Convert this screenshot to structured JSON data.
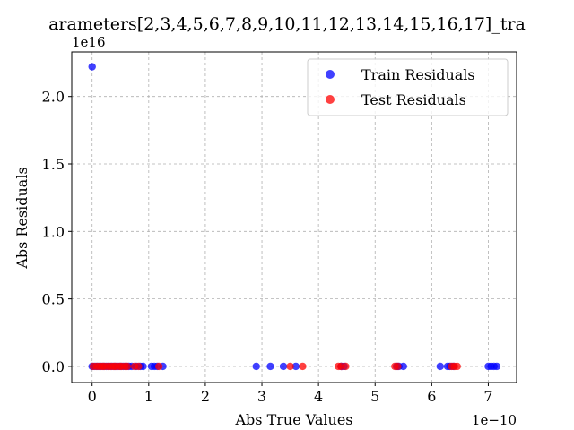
{
  "chart_data": {
    "type": "scatter",
    "title": "arameters[2,3,4,5,6,7,8,9,10,11,12,13,14,15,16,17]_tra",
    "xlabel": "Abs True Values",
    "ylabel": "Abs Residuals",
    "x_offset_label": "1e−10",
    "y_offset_label": "1e16",
    "x_scale": 1e-10,
    "y_scale": 1e+16,
    "xlim": [
      -0.36,
      7.5
    ],
    "ylim": [
      -0.12,
      2.33
    ],
    "xticks": [
      0,
      1,
      2,
      3,
      4,
      5,
      6,
      7
    ],
    "yticks": [
      0.0,
      0.5,
      1.0,
      1.5,
      2.0
    ],
    "xtick_labels": [
      "0",
      "1",
      "2",
      "3",
      "4",
      "5",
      "6",
      "7"
    ],
    "ytick_labels": [
      "0.0",
      "0.5",
      "1.0",
      "1.5",
      "2.0"
    ],
    "grid": true,
    "legend_position": "top-right",
    "series": [
      {
        "name": "Train Residuals",
        "color": "#0000ff",
        "points": [
          [
            0.0,
            2.22
          ],
          [
            0.0,
            0.0
          ],
          [
            0.05,
            0.0
          ],
          [
            0.1,
            0.0
          ],
          [
            0.15,
            0.0
          ],
          [
            0.2,
            0.0
          ],
          [
            0.25,
            0.0
          ],
          [
            0.3,
            0.0
          ],
          [
            0.35,
            0.0
          ],
          [
            0.4,
            0.0
          ],
          [
            0.45,
            0.0
          ],
          [
            0.5,
            0.0
          ],
          [
            0.55,
            0.0
          ],
          [
            0.6,
            0.0
          ],
          [
            0.65,
            0.0
          ],
          [
            0.7,
            0.0
          ],
          [
            0.78,
            0.0
          ],
          [
            0.85,
            0.0
          ],
          [
            0.9,
            0.0
          ],
          [
            1.05,
            0.0
          ],
          [
            1.1,
            0.0
          ],
          [
            1.15,
            0.0
          ],
          [
            1.25,
            0.0
          ],
          [
            2.9,
            0.0
          ],
          [
            3.15,
            0.0
          ],
          [
            3.38,
            0.0
          ],
          [
            3.6,
            0.0
          ],
          [
            4.4,
            0.0
          ],
          [
            4.45,
            0.0
          ],
          [
            5.38,
            0.0
          ],
          [
            5.42,
            0.0
          ],
          [
            5.5,
            0.0
          ],
          [
            6.15,
            0.0
          ],
          [
            6.28,
            0.0
          ],
          [
            6.32,
            0.0
          ],
          [
            6.38,
            0.0
          ],
          [
            7.0,
            0.0
          ],
          [
            7.05,
            0.0
          ],
          [
            7.1,
            0.0
          ],
          [
            7.15,
            0.0
          ]
        ]
      },
      {
        "name": "Test Residuals",
        "color": "#ff0000",
        "points": [
          [
            0.02,
            0.0
          ],
          [
            0.08,
            0.0
          ],
          [
            0.13,
            0.0
          ],
          [
            0.18,
            0.0
          ],
          [
            0.22,
            0.0
          ],
          [
            0.28,
            0.0
          ],
          [
            0.33,
            0.0
          ],
          [
            0.38,
            0.0
          ],
          [
            0.42,
            0.0
          ],
          [
            0.48,
            0.0
          ],
          [
            0.52,
            0.0
          ],
          [
            0.58,
            0.0
          ],
          [
            0.62,
            0.0
          ],
          [
            0.75,
            0.0
          ],
          [
            0.82,
            0.0
          ],
          [
            1.18,
            0.0
          ],
          [
            3.5,
            0.0
          ],
          [
            3.72,
            0.0
          ],
          [
            4.35,
            0.0
          ],
          [
            4.4,
            0.0
          ],
          [
            4.48,
            0.0
          ],
          [
            5.35,
            0.0
          ],
          [
            5.4,
            0.0
          ],
          [
            6.35,
            0.0
          ],
          [
            6.4,
            0.0
          ],
          [
            6.45,
            0.0
          ]
        ]
      }
    ]
  }
}
